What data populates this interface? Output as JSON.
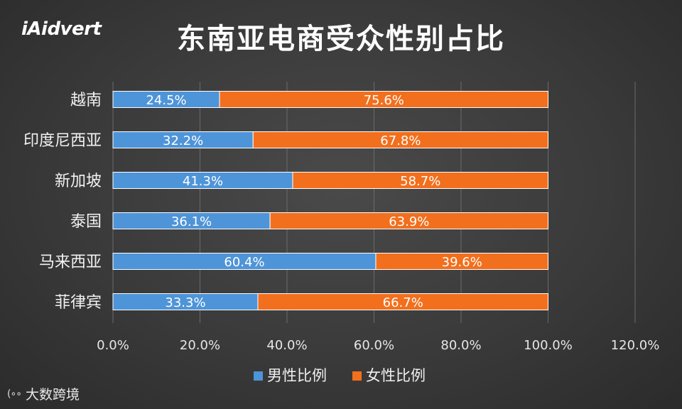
{
  "logo_text": "iAidvert",
  "watermark_text": "大数跨境",
  "chart_data": {
    "type": "bar",
    "orientation": "horizontal",
    "stacked": true,
    "title": "东南亚电商受众性别占比",
    "categories": [
      "越南",
      "印度尼西亚",
      "新加坡",
      "泰国",
      "马来西亚",
      "菲律宾"
    ],
    "series": [
      {
        "name": "男性比例",
        "color": "#4e94d8",
        "values": [
          24.5,
          32.2,
          41.3,
          36.1,
          60.4,
          33.3
        ],
        "labels": [
          "24.5%",
          "32.2%",
          "41.3%",
          "36.1%",
          "60.4%",
          "33.3%"
        ]
      },
      {
        "name": "女性比例",
        "color": "#f26f1d",
        "values": [
          75.6,
          67.8,
          58.7,
          63.9,
          39.6,
          66.7
        ],
        "labels": [
          "75.6%",
          "67.8%",
          "58.7%",
          "63.9%",
          "39.6%",
          "66.7%"
        ]
      }
    ],
    "xlim": [
      0,
      120
    ],
    "xticks": [
      "0.0%",
      "20.0%",
      "40.0%",
      "60.0%",
      "80.0%",
      "100.0%",
      "120.0%"
    ],
    "grid": true,
    "legend": "bottom"
  }
}
